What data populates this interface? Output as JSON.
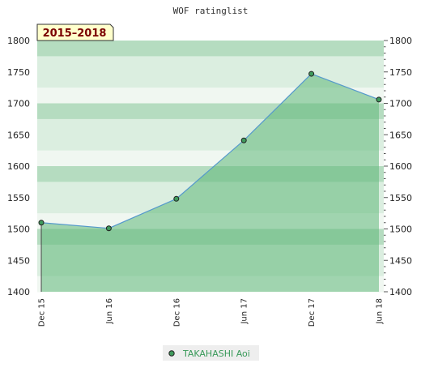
{
  "chart_data": {
    "type": "area",
    "title": "WOF ratinglist",
    "period_label": "2015–2018",
    "categories": [
      "Dec 15",
      "Jun 16",
      "Dec 16",
      "Jun 17",
      "Dec 17",
      "Jun 18"
    ],
    "series": [
      {
        "name": "TAKAHASHI Aoi",
        "values": [
          1510,
          1501,
          1548,
          1641,
          1747,
          1706
        ]
      }
    ],
    "ylim": [
      1400,
      1800
    ],
    "yticks": [
      1400,
      1450,
      1500,
      1550,
      1600,
      1650,
      1700,
      1750,
      1800
    ],
    "grid": "horizontal bands",
    "legend_position": "bottom",
    "colors": {
      "area_fill": "#5fb878",
      "line": "#5599cc",
      "marker": "#3f9a5c",
      "band_light": "#f0f7f1",
      "band_mid": "#dbeee0",
      "band_dark": "#b5dcc0",
      "badge_bg": "#ffffcc"
    }
  }
}
